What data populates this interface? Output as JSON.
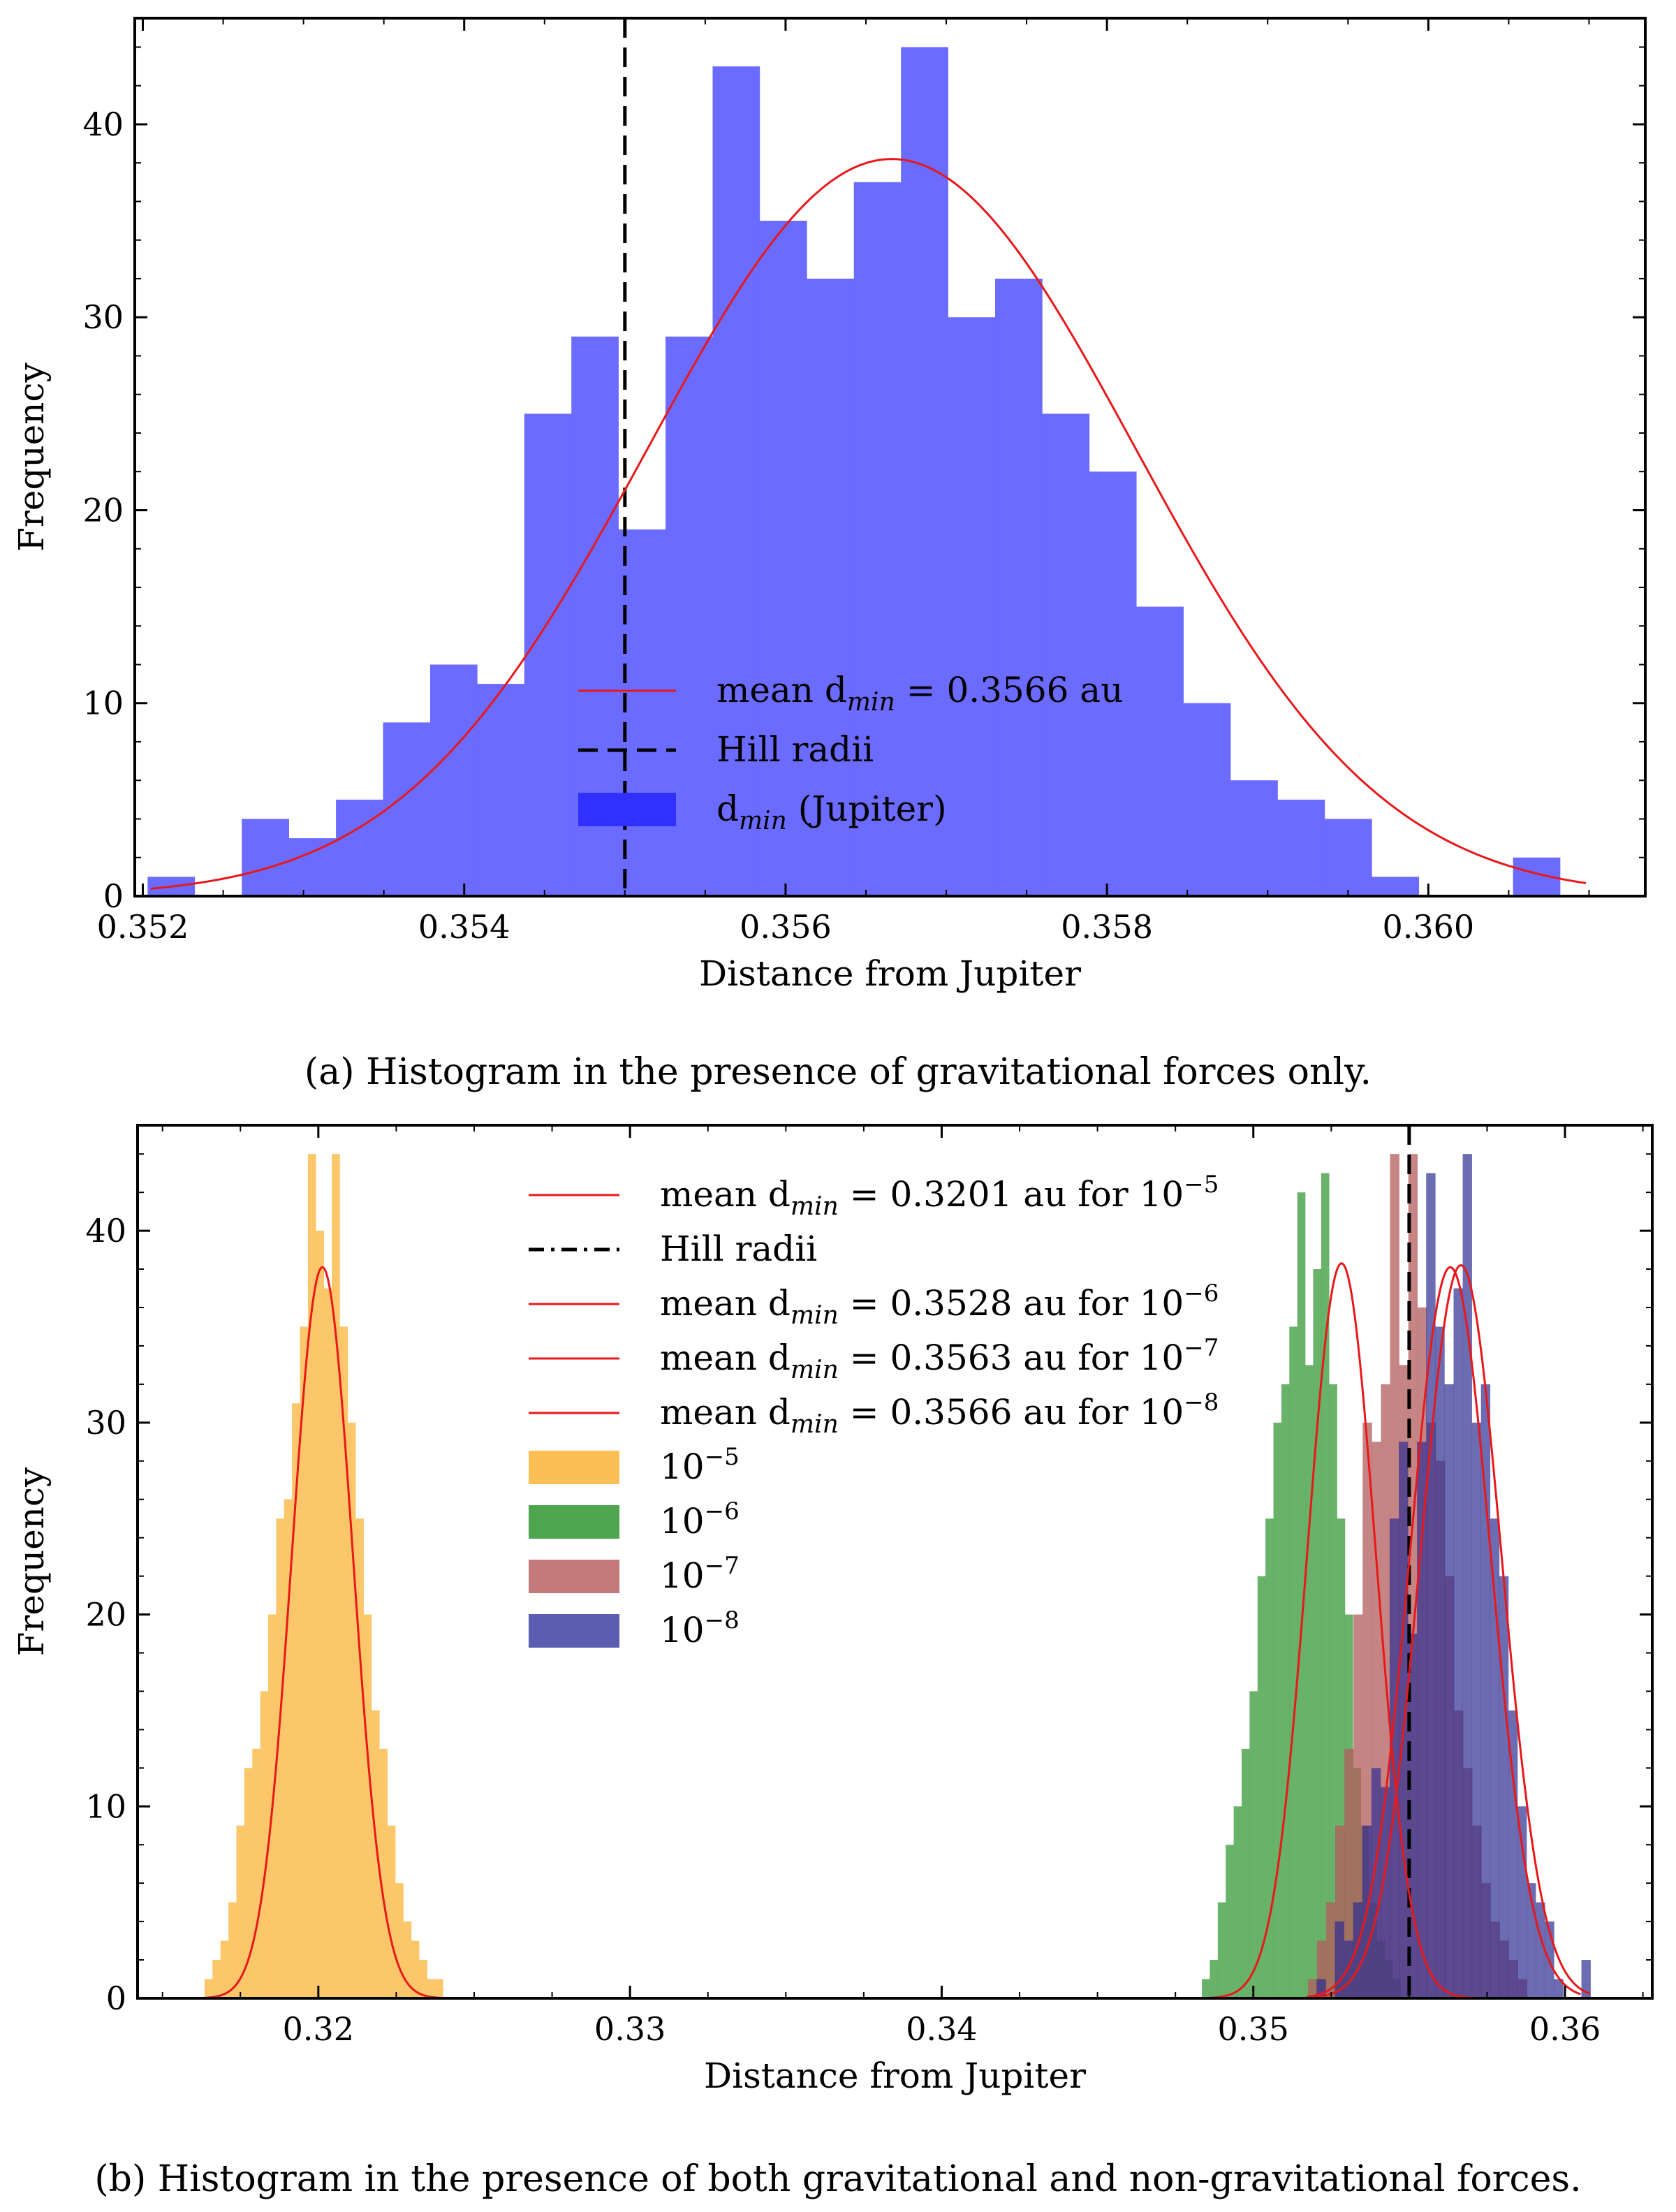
{
  "chart_data": [
    {
      "type": "bar",
      "id": "a",
      "xlabel": "Distance from Jupiter",
      "ylabel": "Frequency",
      "xlim": [
        0.35195,
        0.36135
      ],
      "ylim": [
        0,
        45.5
      ],
      "xticks": [
        0.352,
        0.354,
        0.356,
        0.358,
        0.36
      ],
      "xtick_labels": [
        "0.352",
        "0.354",
        "0.356",
        "0.358",
        "0.360"
      ],
      "yticks": [
        0,
        10,
        20,
        30,
        40
      ],
      "ytick_labels": [
        "0",
        "10",
        "20",
        "30",
        "40"
      ],
      "hill_radius": 0.355,
      "series": [
        {
          "name": "dmin (Jupiter)",
          "color": "#6b6bff",
          "bin_start": 0.35203,
          "bin_width": 0.000293,
          "counts": [
            1,
            0,
            4,
            3,
            5,
            9,
            12,
            11,
            25,
            29,
            19,
            29,
            43,
            35,
            32,
            37,
            44,
            30,
            32,
            25,
            22,
            15,
            10,
            6,
            5,
            4,
            1,
            0,
            0,
            2
          ]
        }
      ],
      "fit": {
        "name": "mean dmin = 0.3566 au",
        "color": "#e8181a",
        "mean": 0.35666,
        "sigma": 0.00152,
        "amplitude": 38.2
      },
      "legend": [
        {
          "kind": "line",
          "color": "#e8181a",
          "pre": "mean d",
          "sub": "min",
          "post": " = 0.3566 au"
        },
        {
          "kind": "dashed",
          "color": "#000000",
          "pre": "Hill radii",
          "sub": "",
          "post": ""
        },
        {
          "kind": "patch",
          "color": "#3030ff",
          "pre": "d",
          "sub": "min",
          "post": " (Jupiter)"
        }
      ]
    },
    {
      "type": "bar",
      "id": "b",
      "xlabel": "Distance from Jupiter",
      "ylabel": "Frequency",
      "xlim": [
        0.3142,
        0.3628
      ],
      "ylim": [
        0,
        45.5
      ],
      "xticks": [
        0.32,
        0.33,
        0.34,
        0.35,
        0.36
      ],
      "xtick_labels": [
        "0.32",
        "0.33",
        "0.34",
        "0.35",
        "0.36"
      ],
      "yticks": [
        0,
        10,
        20,
        30,
        40
      ],
      "ytick_labels": [
        "0",
        "10",
        "20",
        "30",
        "40"
      ],
      "hill_radius": 0.355,
      "series": [
        {
          "name": "10^-5",
          "color": "#fbbf55",
          "opacity": 0.88,
          "bin_start": 0.31635,
          "bin_width": 0.000255,
          "counts": [
            1,
            2,
            3,
            5,
            9,
            12,
            13,
            16,
            20,
            25,
            26,
            31,
            35,
            44,
            40,
            37,
            44,
            35,
            30,
            25,
            20,
            15,
            13,
            9,
            6,
            4,
            3,
            2,
            1,
            1
          ]
        },
        {
          "name": "10^-6",
          "color": "#4fa44f",
          "opacity": 0.85,
          "bin_start": 0.34835,
          "bin_width": 0.000255,
          "counts": [
            1,
            2,
            5,
            8,
            10,
            13,
            16,
            22,
            25,
            30,
            32,
            35,
            42,
            33,
            38,
            43,
            32,
            25,
            20,
            12,
            9,
            5,
            3,
            2,
            1
          ]
        },
        {
          "name": "10^-7",
          "color": "#b35c5c",
          "opacity": 0.75,
          "bin_start": 0.35175,
          "bin_width": 0.000293,
          "counts": [
            1,
            3,
            5,
            9,
            13,
            20,
            30,
            29,
            32,
            44,
            33,
            44,
            36,
            30,
            28,
            22,
            15,
            12,
            9,
            6,
            4,
            3,
            2,
            1
          ]
        },
        {
          "name": "10^-8",
          "color": "#2e2e92",
          "opacity": 0.7,
          "bin_start": 0.35203,
          "bin_width": 0.000293,
          "counts": [
            1,
            0,
            4,
            3,
            5,
            9,
            12,
            11,
            25,
            29,
            19,
            29,
            43,
            35,
            32,
            37,
            44,
            30,
            32,
            25,
            22,
            15,
            10,
            6,
            5,
            4,
            1,
            0,
            0,
            2
          ]
        }
      ],
      "fits": [
        {
          "color": "#e8181a",
          "mean": 0.32013,
          "sigma": 0.00098,
          "amplitude": 38.1,
          "range": [
            0.3161,
            0.3241
          ]
        },
        {
          "color": "#e8181a",
          "mean": 0.35283,
          "sigma": 0.0011,
          "amplitude": 38.3,
          "range": [
            0.3486,
            0.3572
          ]
        },
        {
          "color": "#e8181a",
          "mean": 0.35632,
          "sigma": 0.0013,
          "amplitude": 38.1,
          "range": [
            0.3517,
            0.3605
          ]
        },
        {
          "color": "#e8181a",
          "mean": 0.35666,
          "sigma": 0.0013,
          "amplitude": 38.2,
          "range": [
            0.3519,
            0.3608
          ]
        }
      ],
      "legend": [
        {
          "kind": "line",
          "color": "#e8181a",
          "pre": "mean d",
          "sub": "min",
          "post": " = 0.3201 au for 10",
          "sup": "−5"
        },
        {
          "kind": "dashdot",
          "color": "#000000",
          "pre": "Hill radii",
          "sub": "",
          "post": "",
          "sup": ""
        },
        {
          "kind": "line",
          "color": "#e8181a",
          "pre": "mean d",
          "sub": "min",
          "post": " = 0.3528 au for 10",
          "sup": "−6"
        },
        {
          "kind": "line",
          "color": "#e8181a",
          "pre": "mean d",
          "sub": "min",
          "post": " = 0.3563 au for 10",
          "sup": "−7"
        },
        {
          "kind": "line",
          "color": "#e8181a",
          "pre": "mean d",
          "sub": "min",
          "post": " = 0.3566 au for 10",
          "sup": "−8"
        },
        {
          "kind": "patch",
          "color": "#fbbf55",
          "pre": "10",
          "sub": "",
          "post": "",
          "sup": "−5"
        },
        {
          "kind": "patch",
          "color": "#4fa44f",
          "pre": "10",
          "sub": "",
          "post": "",
          "sup": "−6"
        },
        {
          "kind": "patch",
          "color": "#c47a7a",
          "pre": "10",
          "sub": "",
          "post": "",
          "sup": "−7"
        },
        {
          "kind": "patch",
          "color": "#5c5cb0",
          "pre": "10",
          "sub": "",
          "post": "",
          "sup": "−8"
        }
      ]
    }
  ],
  "captions": {
    "a": "(a) Histogram in the presence of gravitational forces only.",
    "b": "(b) Histogram in the presence of both gravitational and non-gravitational forces."
  }
}
